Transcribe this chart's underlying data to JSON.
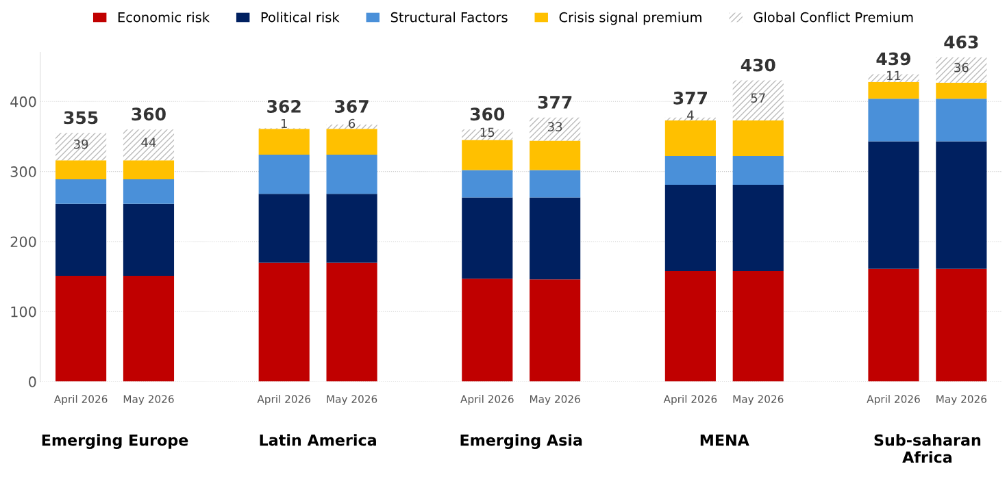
{
  "chart_data": {
    "type": "bar",
    "stacked": true,
    "categories": [
      "April 2026",
      "May 2026",
      null,
      "April 2026",
      "May 2026",
      null,
      "April 2026",
      "May 2026",
      null,
      "April 2026",
      "May 2026",
      null,
      "April 2026",
      "May 2026"
    ],
    "series": [
      {
        "name": "Economic risk",
        "color": "#c00000",
        "values": [
          151,
          151,
          null,
          170,
          170,
          null,
          147,
          146,
          null,
          158,
          158,
          null,
          161,
          161
        ]
      },
      {
        "name": "Political risk",
        "color": "#002060",
        "values": [
          103,
          103,
          null,
          98,
          98,
          null,
          116,
          117,
          null,
          123,
          123,
          null,
          182,
          182
        ]
      },
      {
        "name": "Structural Factors",
        "color": "#4a90d9",
        "values": [
          35,
          35,
          null,
          56,
          56,
          null,
          39,
          39,
          null,
          41,
          41,
          null,
          61,
          61
        ]
      },
      {
        "name": "Crisis signal premium",
        "color": "#ffc000",
        "values": [
          27,
          27,
          null,
          37,
          37,
          null,
          43,
          42,
          null,
          51,
          51,
          null,
          24,
          23
        ]
      },
      {
        "name": "Global Conflict Premium",
        "color": "#d9d9d9",
        "values": [
          39,
          44,
          null,
          1,
          6,
          null,
          15,
          33,
          null,
          4,
          57,
          null,
          11,
          36
        ],
        "value_labels": [
          "39",
          "44",
          null,
          "1",
          "6",
          null,
          "15",
          "33",
          null,
          "4",
          "57",
          null,
          "11",
          "36"
        ]
      }
    ],
    "totals": [
      "355",
      "360",
      null,
      "362",
      "367",
      null,
      "360",
      "377",
      null,
      "377",
      "430",
      null,
      "439",
      "463"
    ],
    "annotations": [
      "Emerging Europe",
      "Latin America",
      "Emerging Asia",
      "MENA",
      "Sub-saharan\nAfrica"
    ],
    "ylim": [
      0,
      470
    ],
    "yticks": [
      0,
      100,
      200,
      300,
      400
    ],
    "grid": "y",
    "legend": "top"
  }
}
